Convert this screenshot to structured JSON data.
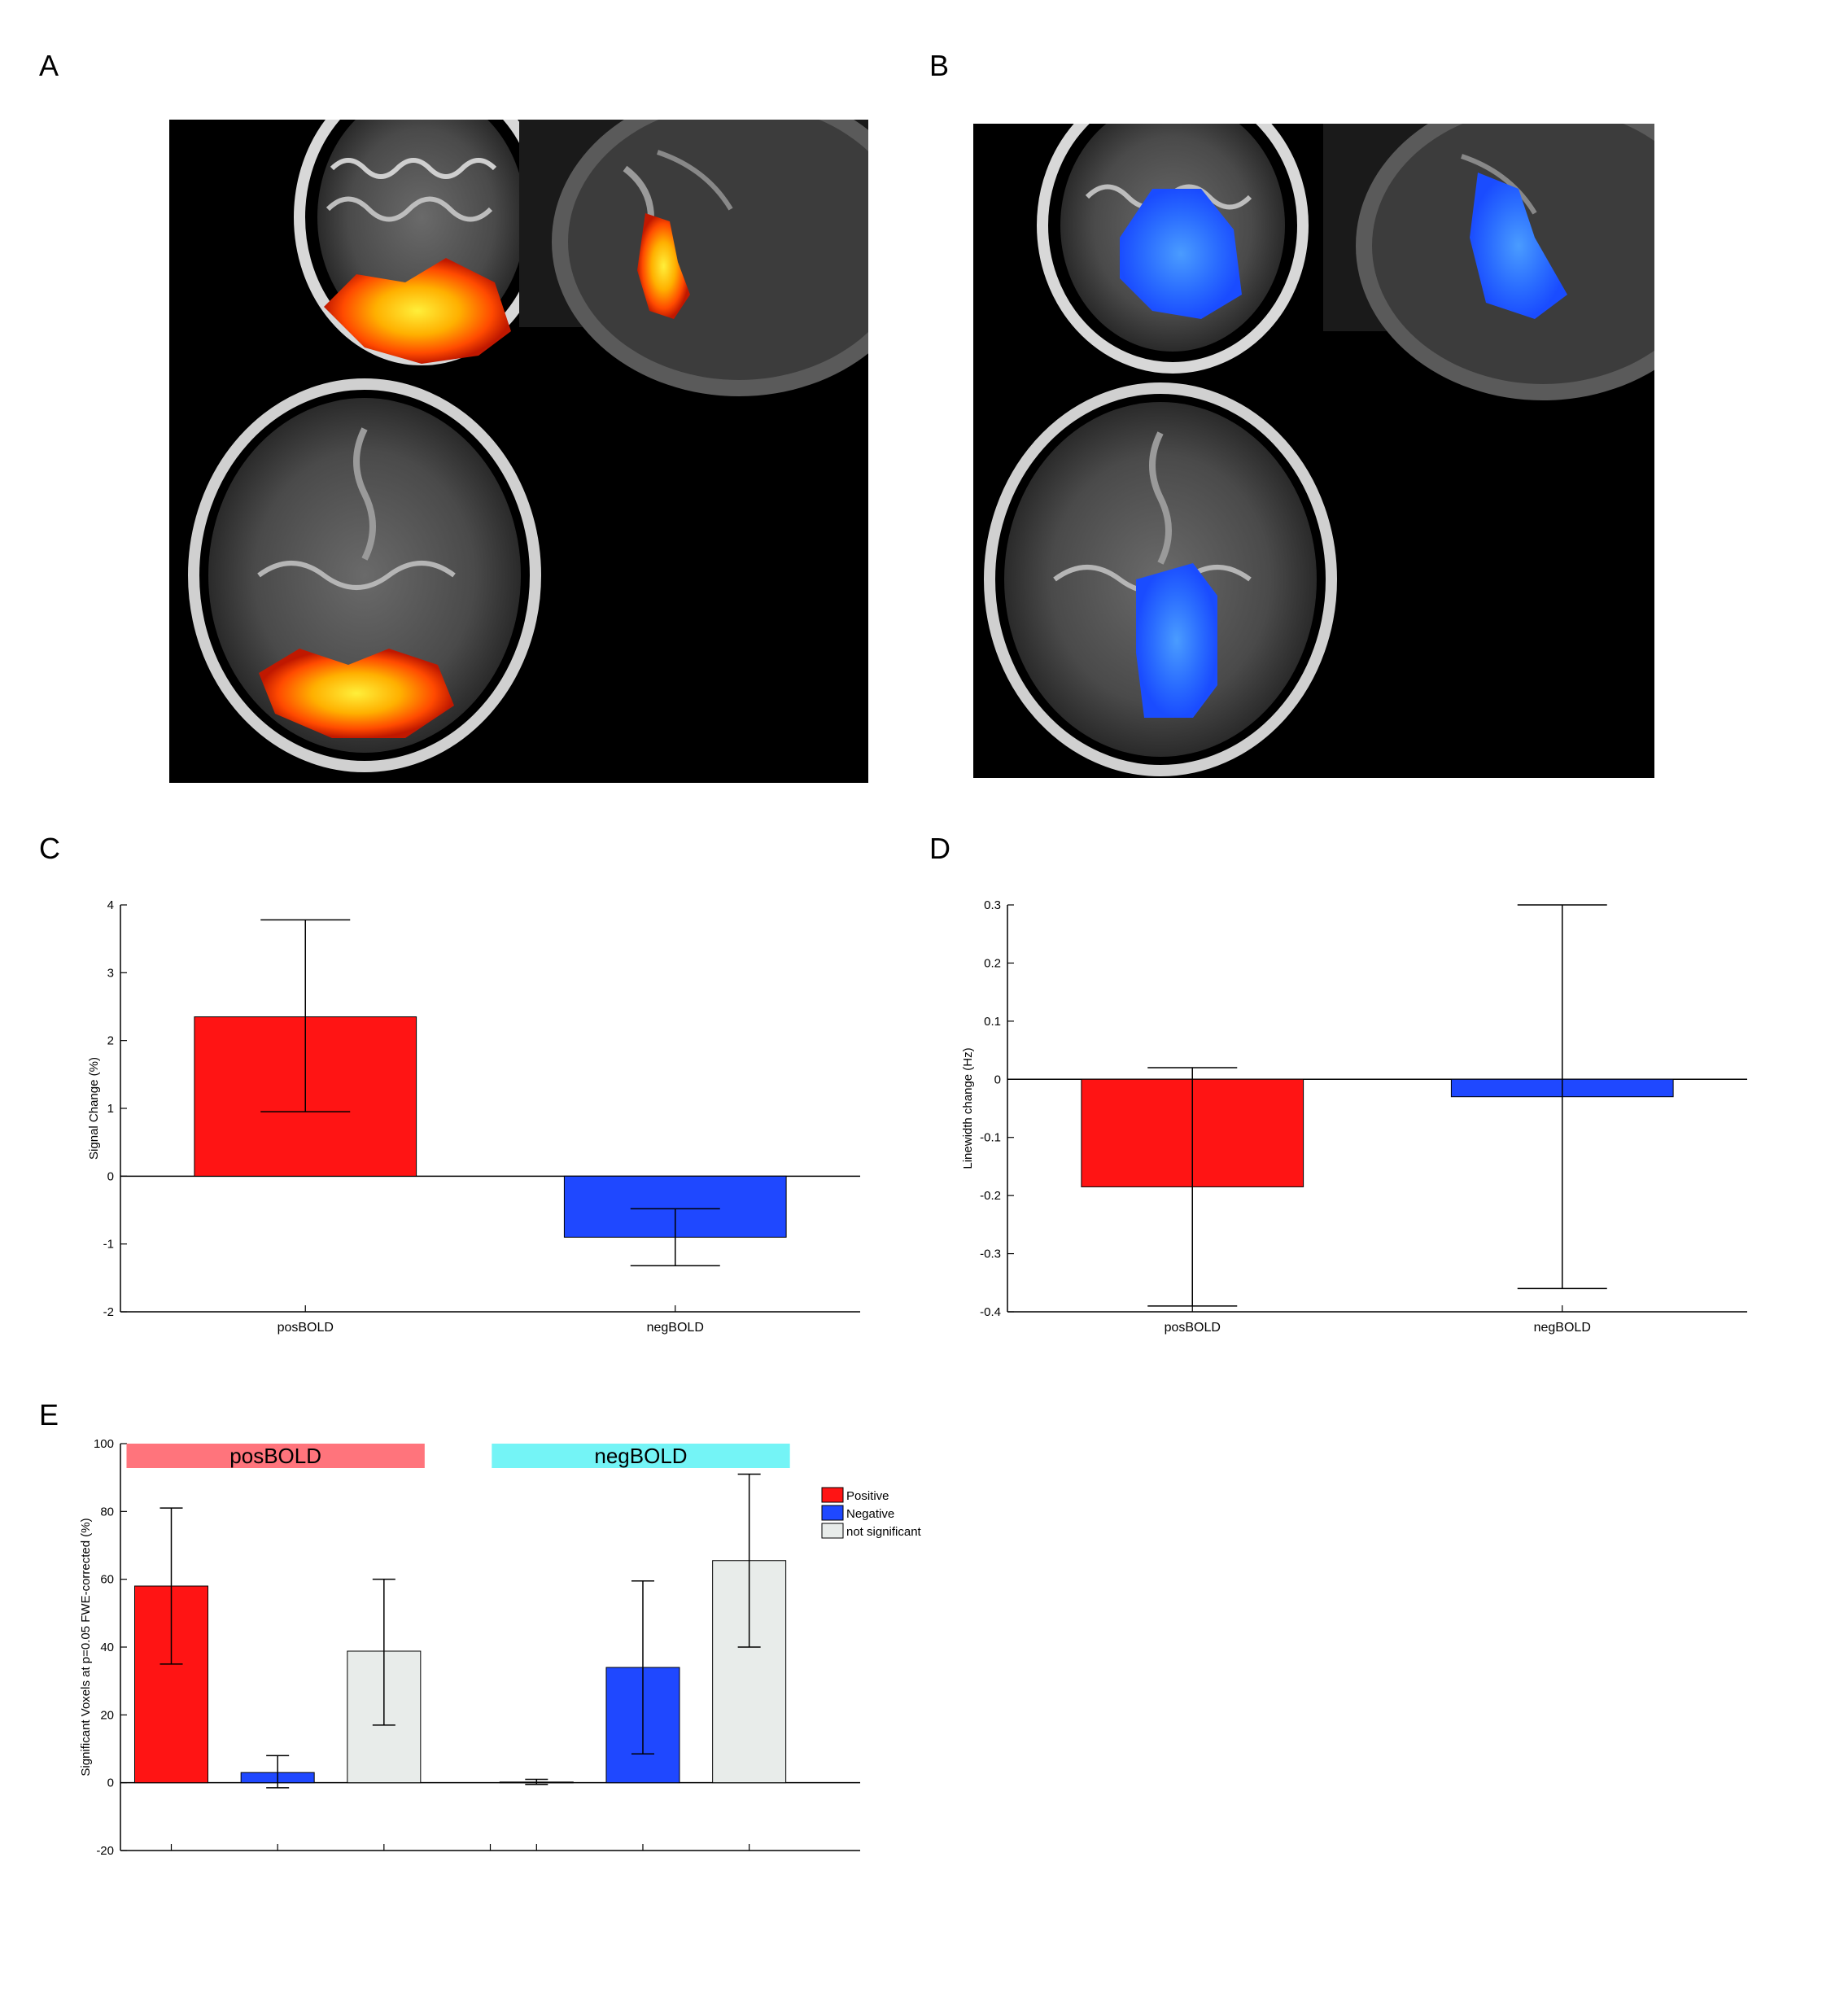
{
  "panel_labels": [
    "A",
    "B",
    "C",
    "D",
    "E"
  ],
  "mri_panels": [
    {
      "panel": "A",
      "activation": "positive",
      "colors": [
        "#b31b00",
        "#ff5a00",
        "#ffd21a"
      ]
    },
    {
      "panel": "B",
      "activation": "negative",
      "colors": [
        "#1f5fff",
        "#3a8cff"
      ]
    }
  ],
  "chart_data": [
    {
      "panel": "C",
      "type": "bar",
      "categories": [
        "posBOLD",
        "negBOLD"
      ],
      "values": [
        2.35,
        -0.9
      ],
      "error_low": [
        0.95,
        -1.32
      ],
      "error_high": [
        3.78,
        -0.48
      ],
      "colors": [
        "#ff1414",
        "#1f48ff"
      ],
      "ylabel": "Signal Change (%)",
      "xlabel": "",
      "ylim": [
        -2,
        4
      ],
      "yticks": [
        "-2",
        "-1",
        "0",
        "1",
        "2",
        "3",
        "4"
      ],
      "grid": false
    },
    {
      "panel": "D",
      "type": "bar",
      "categories": [
        "posBOLD",
        "negBOLD"
      ],
      "values": [
        -0.185,
        -0.03
      ],
      "error_low": [
        -0.39,
        -0.36
      ],
      "error_high": [
        0.02,
        0.3
      ],
      "colors": [
        "#ff1414",
        "#1f48ff"
      ],
      "ylabel": "Linewidth change (Hz)",
      "xlabel": "",
      "ylim": [
        -0.4,
        0.3
      ],
      "yticks": [
        "-0.4",
        "-0.3",
        "-0.2",
        "-0.1",
        "0",
        "0.1",
        "0.2",
        "0.3"
      ],
      "grid": false
    },
    {
      "panel": "E",
      "type": "bar",
      "groups": [
        {
          "name": "posBOLD",
          "color": "#ff747c"
        },
        {
          "name": "negBOLD",
          "color": "#74f4f6"
        }
      ],
      "series": [
        {
          "name": "Positive",
          "color": "#ff1414",
          "values": [
            58,
            0.2
          ],
          "error_low": [
            35,
            -0.5
          ],
          "error_high": [
            81,
            1
          ]
        },
        {
          "name": "Negative",
          "color": "#1f48ff",
          "values": [
            3,
            34
          ],
          "error_low": [
            -1.5,
            8.5
          ],
          "error_high": [
            8,
            59.5
          ]
        },
        {
          "name": "not significant",
          "color": "#e8ecea",
          "values": [
            38.8,
            65.5
          ],
          "error_low": [
            17,
            40
          ],
          "error_high": [
            60,
            91
          ]
        }
      ],
      "ylabel": "Significant Voxels at p=0.05 FWE-corrected (%)",
      "xlabel": "",
      "ylim": [
        -20,
        100
      ],
      "yticks": [
        "-20",
        "0",
        "20",
        "40",
        "60",
        "80",
        "100"
      ],
      "legend_position": "top-right",
      "grid": false
    }
  ]
}
